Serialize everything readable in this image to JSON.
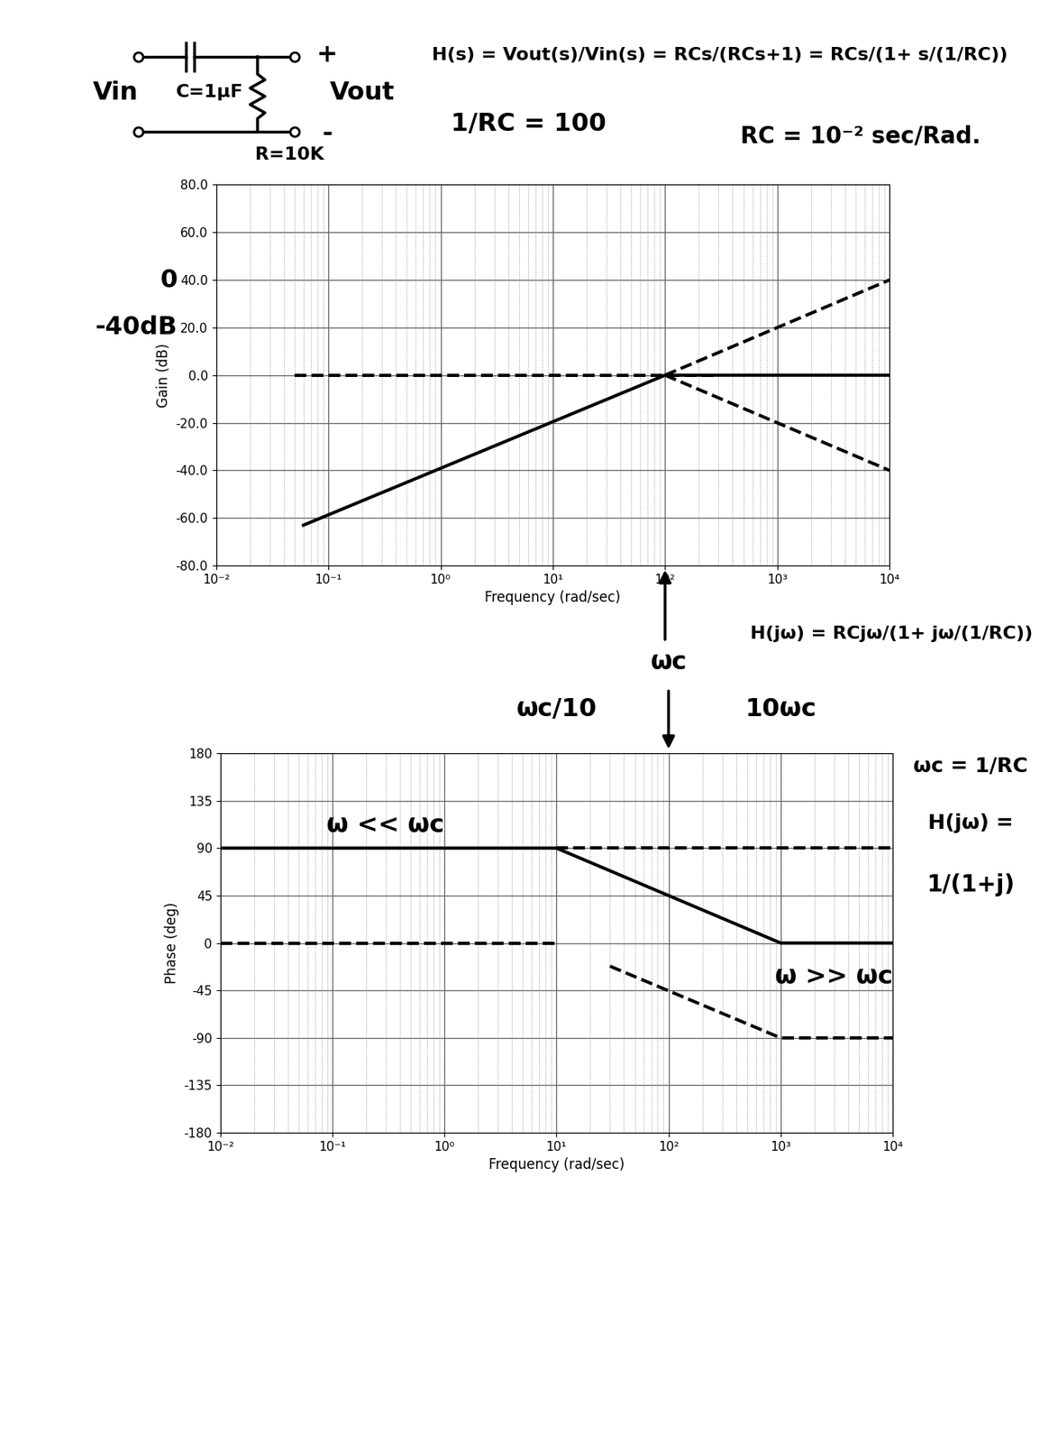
{
  "page": {
    "circuit": {
      "input": "Vin",
      "capacitor": "C=1μF",
      "resistor": "R=10K",
      "output": "Vout",
      "plus": "+",
      "minus": "-"
    },
    "equations": [
      "H(s) = Vout(s)/Vin(s) = RCs/(RCs+1) = RCs/(1+ s/(1/RC))",
      "1/RC = 100",
      "RC = 10⁻² sec/Rad."
    ],
    "side_notes": [
      "H(jω) = RCjω/(1+ jω/(1/RC))",
      "ωc = 1/RC",
      "H(jω) =",
      "1/(1+j)"
    ]
  },
  "chart_data": [
    {
      "type": "line",
      "log": "x",
      "grid": true,
      "x_label": "Frequency (rad/sec)",
      "y_label": "Gain (dB)",
      "xlim": [
        0.01,
        10000
      ],
      "xticks": [
        {
          "value": 0.01,
          "label": "10⁻²"
        },
        {
          "value": 0.1,
          "label": "10⁻¹"
        },
        {
          "value": 1,
          "label": "10⁰"
        },
        {
          "value": 10,
          "label": "10¹"
        },
        {
          "value": 100,
          "label": "10²"
        },
        {
          "value": 1000,
          "label": "10³"
        },
        {
          "value": 10000,
          "label": "10⁴"
        }
      ],
      "ylim": [
        -80,
        80
      ],
      "yticks": [
        {
          "value": -80,
          "label": "-80.0"
        },
        {
          "value": -60,
          "label": "-60.0"
        },
        {
          "value": -40,
          "label": "-40.0"
        },
        {
          "value": -20,
          "label": "-20.0"
        },
        {
          "value": 0,
          "label": "0.0"
        },
        {
          "value": 20,
          "label": "20.0"
        },
        {
          "value": 40,
          "label": "40.0"
        },
        {
          "value": 60,
          "label": "60.0"
        },
        {
          "value": 80,
          "label": "80.0"
        }
      ],
      "series": [
        {
          "color": "#000000",
          "line_style": "solid",
          "x": [
            0.06,
            100,
            10000
          ],
          "values": [
            -63,
            0,
            0
          ]
        },
        {
          "color": "#000000",
          "line_style": "dashed",
          "x": [
            0.05,
            300
          ],
          "values": [
            0,
            0
          ]
        },
        {
          "color": "#000000",
          "line_style": "dashed",
          "x": [
            100,
            10000
          ],
          "values": [
            0,
            40
          ]
        },
        {
          "color": "#000000",
          "line_style": "dashed",
          "x": [
            100,
            10000
          ],
          "values": [
            0,
            -40
          ]
        }
      ],
      "annotations": [
        {
          "text": "0",
          "x": 0.0045,
          "y": 40
        },
        {
          "text": "-40dB",
          "x": 0.0045,
          "y": 20
        }
      ]
    },
    {
      "type": "line",
      "log": "x",
      "grid": true,
      "x_label": "Frequency (rad/sec)",
      "y_label": "Phase (deg)",
      "xlim": [
        0.01,
        10000
      ],
      "xticks": [
        {
          "value": 0.01,
          "label": "10⁻²"
        },
        {
          "value": 0.1,
          "label": "10⁻¹"
        },
        {
          "value": 1,
          "label": "10⁰"
        },
        {
          "value": 10,
          "label": "10¹"
        },
        {
          "value": 100,
          "label": "10²"
        },
        {
          "value": 1000,
          "label": "10³"
        },
        {
          "value": 10000,
          "label": "10⁴"
        }
      ],
      "ylim": [
        -180,
        180
      ],
      "yticks": [
        -180,
        -135,
        -90,
        -45,
        0,
        45,
        90,
        135,
        180
      ],
      "series": [
        {
          "color": "#000000",
          "line_style": "solid",
          "x": [
            0.01,
            10,
            1000,
            10000
          ],
          "values": [
            90,
            90,
            0,
            0
          ]
        },
        {
          "color": "#000000",
          "line_style": "dashed",
          "x": [
            10,
            10000
          ],
          "values": [
            90,
            90
          ]
        },
        {
          "color": "#000000",
          "line_style": "dashed",
          "x": [
            0.01,
            10
          ],
          "values": [
            0,
            0
          ]
        },
        {
          "color": "#000000",
          "line_style": "dashed",
          "x": [
            30,
            1000,
            10000
          ],
          "values": [
            -22,
            -90,
            -90
          ]
        }
      ],
      "annotations": [
        {
          "text": "ω << ωc",
          "x": 0.3,
          "y": 112
        },
        {
          "text": "ω >> ωc",
          "x": 3000,
          "y": -32
        },
        {
          "text": "ωc/10",
          "x": 10,
          "y": 222
        },
        {
          "text": "ωc",
          "x": 100,
          "y": 266
        },
        {
          "text": "10ωc",
          "x": 1000,
          "y": 222
        }
      ]
    }
  ]
}
